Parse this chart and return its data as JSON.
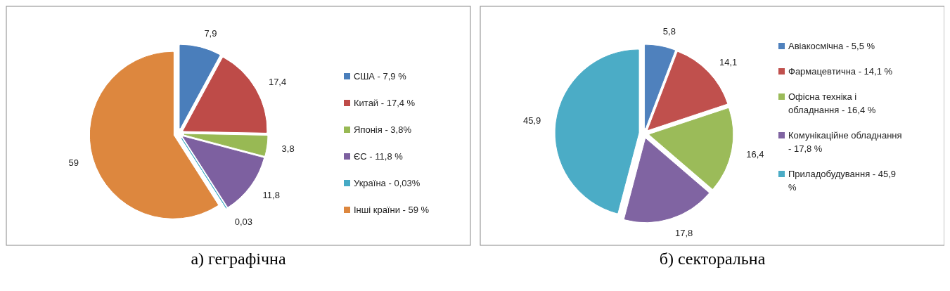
{
  "chart_data": [
    {
      "type": "pie",
      "annotations": [
        "а) геграфічна"
      ],
      "categories": [
        "США - 7,9 %",
        "Китай - 17,4 %",
        "Японія - 3,8%",
        "ЄС - 11,8 %",
        "Україна - 0,03%",
        "Інші країни - 59 %"
      ],
      "values": [
        7.9,
        17.4,
        3.8,
        11.8,
        0.03,
        59
      ],
      "value_labels": [
        "7,9",
        "17,4",
        "3,8",
        "11,8",
        "0,03",
        "59"
      ],
      "colors": [
        "#4a7ebb",
        "#be4b48",
        "#98b954",
        "#7d60a0",
        "#46aac5",
        "#dd873e"
      ],
      "legend": "right"
    },
    {
      "type": "pie",
      "annotations": [
        "б) секторальна"
      ],
      "categories": [
        "Авіакосмічна - 5,5 %",
        "Фармацевтична - 14,1 %",
        "Офісна техніка і обладнання - 16,4 %",
        "Комунікаційне обладнання - 17,8 %",
        "Приладобудування - 45,9 %"
      ],
      "values": [
        5.8,
        14.1,
        16.4,
        17.8,
        45.9
      ],
      "value_labels": [
        "5,8",
        "14,1",
        "16,4",
        "17,8",
        "45,9"
      ],
      "colors": [
        "#4f81bd",
        "#c0504d",
        "#9bbb59",
        "#8064a2",
        "#4bacc6"
      ],
      "legend": "right"
    }
  ]
}
